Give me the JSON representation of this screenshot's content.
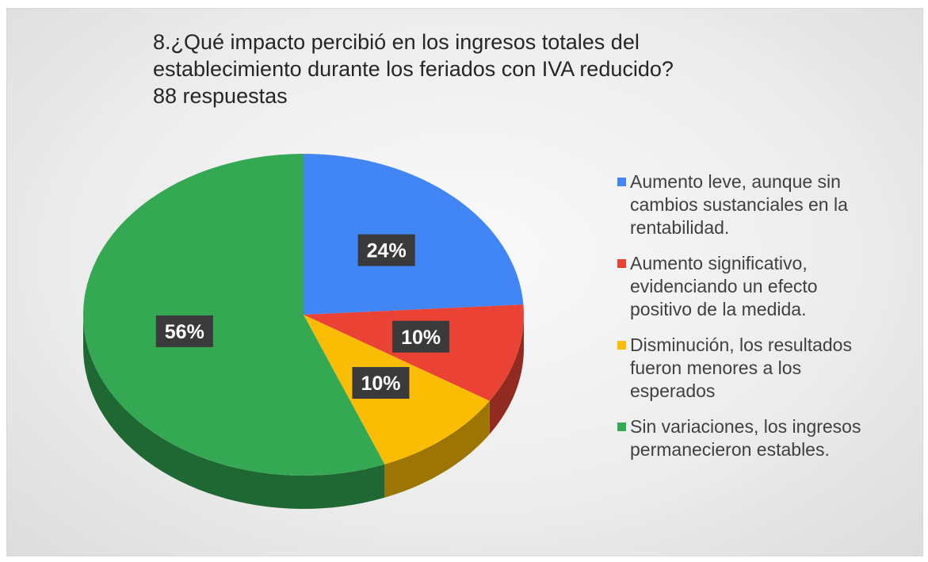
{
  "chart_data": {
    "type": "pie",
    "title": "8.¿Qué impacto percibió en los ingresos totales del establecimiento durante los feriados con IVA reducido?",
    "subtitle": "88 respuestas",
    "categories": [
      "Aumento leve, aunque sin cambios sustanciales en la rentabilidad.",
      "Aumento significativo, evidenciando un efecto positivo de la medida.",
      "Disminución, los resultados fueron menores a los esperados",
      "Sin variaciones, los ingresos permanecieron estables."
    ],
    "values": [
      24,
      10,
      10,
      56
    ],
    "value_labels": [
      "24%",
      "10%",
      "10%",
      "56%"
    ],
    "colors": [
      "#4285f4",
      "#ea4335",
      "#fbbc04",
      "#34a853"
    ],
    "legend": "right"
  }
}
